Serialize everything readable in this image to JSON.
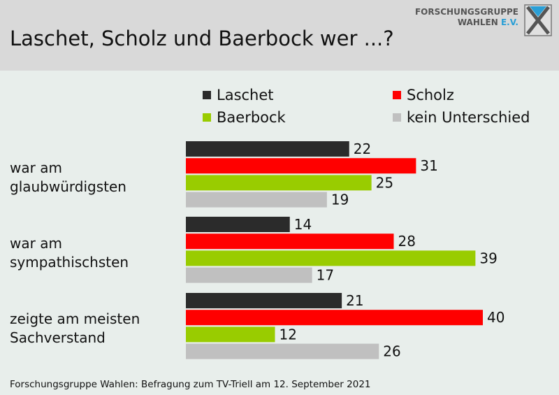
{
  "title": "Laschet, Scholz und Baerbock wer ...?",
  "logo": {
    "line1": "FORSCHUNGSGRUPPE",
    "line2": "WAHLEN",
    "line2_suffix": "E.V."
  },
  "footer": "Forschungsgruppe Wahlen: Befragung zum TV-Triell am 12. September 2021",
  "colors": {
    "Laschet": "#2b2b2b",
    "Scholz": "#ff0000",
    "Baerbock": "#99cc00",
    "kein Unterschied": "#c0c0c0"
  },
  "chart_data": {
    "type": "bar",
    "orientation": "horizontal",
    "categories": [
      {
        "line1": "war am",
        "line2": "glaubwürdigsten"
      },
      {
        "line1": "war am",
        "line2": "sympathischsten"
      },
      {
        "line1": "zeigte am meisten",
        "line2": "Sachverstand"
      }
    ],
    "series": [
      {
        "name": "Laschet",
        "values": [
          22,
          14,
          21
        ]
      },
      {
        "name": "Scholz",
        "values": [
          31,
          28,
          40
        ]
      },
      {
        "name": "Baerbock",
        "values": [
          25,
          39,
          12
        ]
      },
      {
        "name": "kein Unterschied",
        "values": [
          19,
          17,
          26
        ]
      }
    ],
    "xlim": [
      0,
      40
    ],
    "legend_position": "top-right",
    "grid": false
  }
}
